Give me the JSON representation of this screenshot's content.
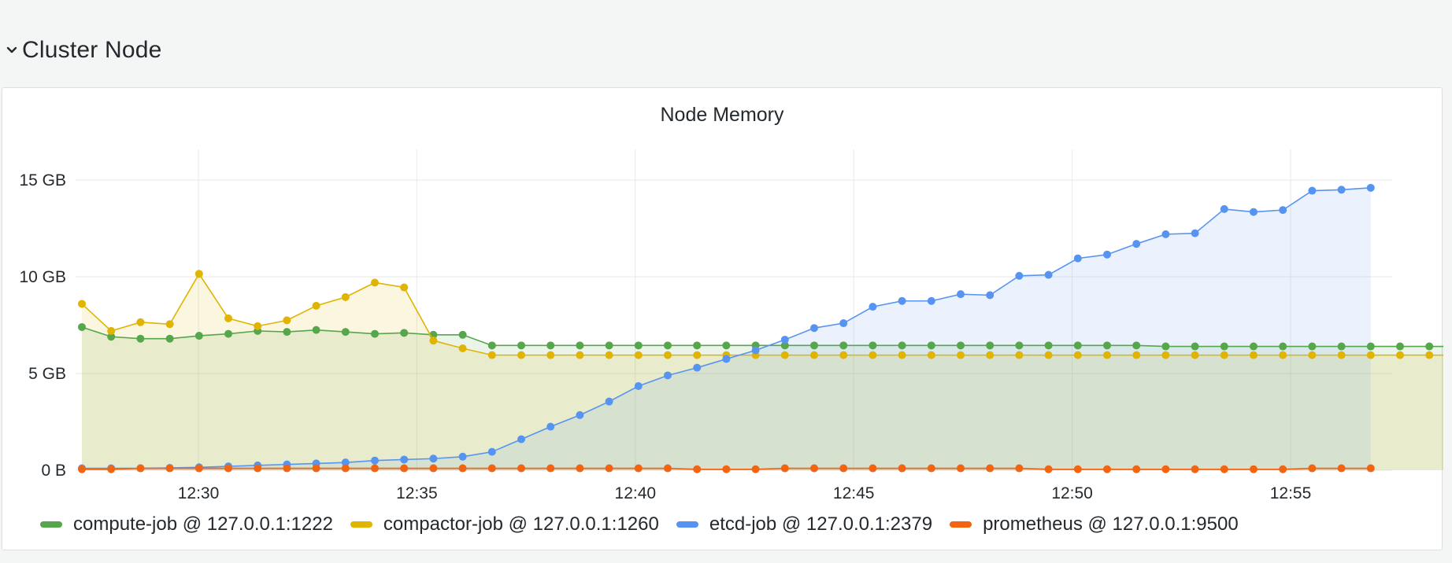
{
  "row": {
    "title": "Cluster Node",
    "icon": "chevron-down-icon"
  },
  "panel": {
    "title": "Node Memory"
  },
  "chart_data": {
    "type": "area",
    "title": "Node Memory",
    "y_unit": "GB",
    "ylim": [
      0,
      15.5
    ],
    "y_ticks": [
      {
        "value": 0,
        "label": "0 B"
      },
      {
        "value": 5,
        "label": "5 GB"
      },
      {
        "value": 10,
        "label": "10 GB"
      },
      {
        "value": 15,
        "label": "15 GB"
      }
    ],
    "x_ticks": [
      "12:30",
      "12:35",
      "12:40",
      "12:45",
      "12:50",
      "12:55"
    ],
    "x_start": "12:27:20",
    "x_step_seconds": 40,
    "grid": true,
    "legend_position": "bottom",
    "series": [
      {
        "name": "compute-job @ 127.0.0.1:1222",
        "color": "#56a64b",
        "values": [
          7.4,
          6.9,
          6.8,
          6.8,
          6.95,
          7.05,
          7.2,
          7.15,
          7.25,
          7.15,
          7.05,
          7.1,
          7.0,
          7.0,
          6.45,
          6.45,
          6.45,
          6.45,
          6.45,
          6.45,
          6.45,
          6.45,
          6.45,
          6.45,
          6.45,
          6.45,
          6.45,
          6.45,
          6.45,
          6.45,
          6.45,
          6.45,
          6.45,
          6.45,
          6.45,
          6.45,
          6.45,
          6.4,
          6.4,
          6.4,
          6.4,
          6.4,
          6.4,
          6.4,
          6.4,
          6.4,
          6.4,
          6.4
        ]
      },
      {
        "name": "compactor-job @ 127.0.0.1:1260",
        "color": "#e0b400",
        "values": [
          8.6,
          7.2,
          7.65,
          7.55,
          10.15,
          7.85,
          7.45,
          7.75,
          8.5,
          8.95,
          9.7,
          9.45,
          6.7,
          6.3,
          5.95,
          5.95,
          5.95,
          5.95,
          5.95,
          5.95,
          5.95,
          5.95,
          5.95,
          5.95,
          5.95,
          5.95,
          5.95,
          5.95,
          5.95,
          5.95,
          5.95,
          5.95,
          5.95,
          5.95,
          5.95,
          5.95,
          5.95,
          5.95,
          5.95,
          5.95,
          5.95,
          5.95,
          5.95,
          5.95,
          5.95,
          5.95,
          5.95,
          5.95
        ]
      },
      {
        "name": "etcd-job @ 127.0.0.1:2379",
        "color": "#5794f2",
        "values": [
          0.1,
          0.1,
          0.1,
          0.12,
          0.15,
          0.2,
          0.25,
          0.3,
          0.35,
          0.4,
          0.5,
          0.55,
          0.6,
          0.7,
          0.95,
          1.6,
          2.25,
          2.85,
          3.55,
          4.35,
          4.9,
          5.3,
          5.75,
          6.2,
          6.75,
          7.35,
          7.6,
          8.45,
          8.75,
          8.75,
          9.1,
          9.05,
          10.05,
          10.1,
          10.95,
          11.15,
          11.7,
          12.2,
          12.25,
          13.5,
          13.35,
          13.45,
          14.45,
          14.5,
          14.6,
          null,
          null,
          null
        ]
      },
      {
        "name": "prometheus @ 127.0.0.1:9500",
        "color": "#f2640f",
        "values": [
          0.05,
          0.05,
          0.1,
          0.1,
          0.1,
          0.1,
          0.1,
          0.1,
          0.1,
          0.1,
          0.1,
          0.1,
          0.1,
          0.1,
          0.1,
          0.1,
          0.1,
          0.1,
          0.1,
          0.1,
          0.1,
          0.05,
          0.05,
          0.05,
          0.1,
          0.1,
          0.1,
          0.1,
          0.1,
          0.1,
          0.1,
          0.1,
          0.1,
          0.05,
          0.05,
          0.05,
          0.05,
          0.05,
          0.05,
          0.05,
          0.05,
          0.05,
          0.1,
          0.1,
          0.1,
          null,
          null,
          null
        ]
      }
    ]
  }
}
